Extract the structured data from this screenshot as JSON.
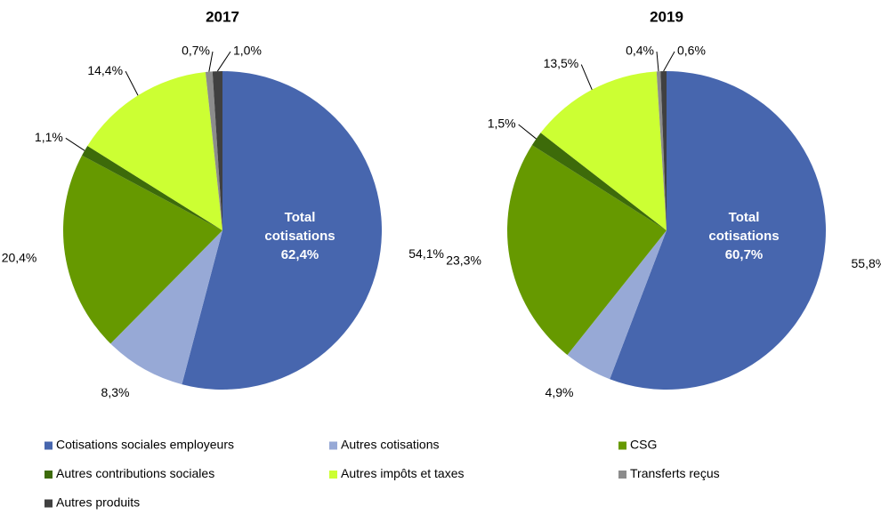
{
  "chart_data": [
    {
      "type": "pie",
      "title": "2017",
      "categories": [
        "Cotisations sociales employeurs",
        "Autres cotisations",
        "CSG",
        "Autres contributions sociales",
        "Autres impôts et taxes",
        "Transferts reçus",
        "Autres produits"
      ],
      "values": [
        54.1,
        8.3,
        20.4,
        1.1,
        14.4,
        0.7,
        1.0
      ],
      "value_labels": [
        "54,1%",
        "8,3%",
        "20,4%",
        "1,1%",
        "14,4%",
        "0,7%",
        "1,0%"
      ],
      "colors": [
        "#4766ae",
        "#97a9d6",
        "#669900",
        "#3d6b0a",
        "#ccff33",
        "#8c8c8c",
        "#404040"
      ],
      "annotation": [
        "Total",
        "cotisations",
        "62,4%"
      ]
    },
    {
      "type": "pie",
      "title": "2019",
      "categories": [
        "Cotisations sociales employeurs",
        "Autres cotisations",
        "CSG",
        "Autres contributions sociales",
        "Autres impôts et taxes",
        "Transferts reçus",
        "Autres produits"
      ],
      "values": [
        55.8,
        4.9,
        23.3,
        1.5,
        13.5,
        0.4,
        0.6
      ],
      "value_labels": [
        "55,8%",
        "4,9%",
        "23,3%",
        "1,5%",
        "13,5%",
        "0,4%",
        "0,6%"
      ],
      "colors": [
        "#4766ae",
        "#97a9d6",
        "#669900",
        "#3d6b0a",
        "#ccff33",
        "#8c8c8c",
        "#404040"
      ],
      "annotation": [
        "Total",
        "cotisations",
        "60,7%"
      ]
    }
  ]
}
